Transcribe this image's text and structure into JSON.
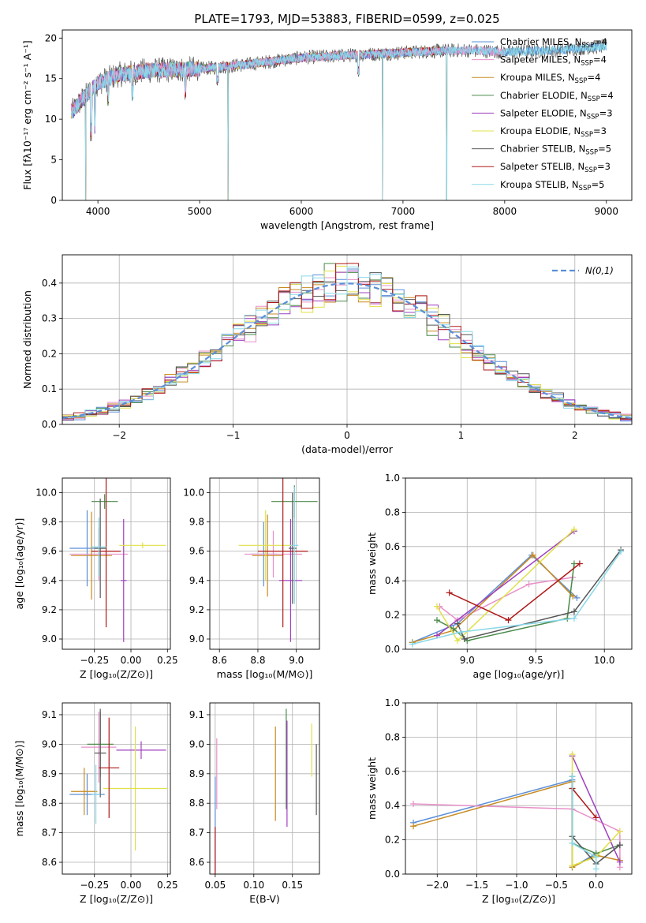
{
  "figure": {
    "title": "PLATE=1793, MJD=53883, FIBERID=0599, z=0.025"
  },
  "legend": [
    {
      "name": "Chabrier MILES, N",
      "sub": "SSP",
      "tail": "=4",
      "color": "#5b8fd8"
    },
    {
      "name": "Salpeter MILES, N",
      "sub": "SSP",
      "tail": "=4",
      "color": "#e890c8"
    },
    {
      "name": "Kroupa MILES, N",
      "sub": "SSP",
      "tail": "=4",
      "color": "#c88a20"
    },
    {
      "name": "Chabrier ELODIE, N",
      "sub": "SSP",
      "tail": "=4",
      "color": "#4a8a4a"
    },
    {
      "name": "Salpeter ELODIE, N",
      "sub": "SSP",
      "tail": "=3",
      "color": "#a040c0"
    },
    {
      "name": "Kroupa ELODIE, N",
      "sub": "SSP",
      "tail": "=3",
      "color": "#e0e048"
    },
    {
      "name": "Chabrier STELIB, N",
      "sub": "SSP",
      "tail": "=5",
      "color": "#555555"
    },
    {
      "name": "Salpeter STELIB, N",
      "sub": "SSP",
      "tail": "=3",
      "color": "#b01818"
    },
    {
      "name": "Kroupa STELIB, N",
      "sub": "SSP",
      "tail": "=5",
      "color": "#88d8e8"
    }
  ],
  "chart_data": [
    {
      "id": "spectrum",
      "type": "line",
      "title": "PLATE=1793, MJD=53883, FIBERID=0599, z=0.025",
      "xlabel": "wavelength [Angstrom, rest frame]",
      "ylabel": "Flux [fλ10⁻¹⁷ erg cm⁻² s⁻¹ A⁻¹]",
      "xlim": [
        3650,
        9250
      ],
      "ylim": [
        0,
        21
      ],
      "xticks": [
        4000,
        5000,
        6000,
        7000,
        8000,
        9000
      ],
      "yticks": [
        0,
        5,
        10,
        15,
        20
      ],
      "grid": false,
      "continuum": [
        [
          3750,
          11
        ],
        [
          3850,
          12.5
        ],
        [
          4000,
          14.5
        ],
        [
          4200,
          15.5
        ],
        [
          4500,
          16
        ],
        [
          5000,
          16.2
        ],
        [
          5500,
          16.8
        ],
        [
          6000,
          17.6
        ],
        [
          6500,
          17.9
        ],
        [
          7000,
          18.2
        ],
        [
          7300,
          18.4
        ],
        [
          7600,
          18.5
        ],
        [
          8000,
          18.3
        ],
        [
          8500,
          18.5
        ],
        [
          9000,
          19.0
        ]
      ],
      "series_ranges": [
        [
          3740,
          9000
        ],
        [
          3740,
          8000
        ],
        [
          3740,
          7430
        ],
        [
          3740,
          7430
        ],
        [
          3740,
          7430
        ],
        [
          3740,
          7430
        ],
        [
          3740,
          9000
        ],
        [
          3740,
          7430
        ],
        [
          3740,
          9000
        ]
      ],
      "dropouts": [
        {
          "x": 5280,
          "to": 0
        },
        {
          "x": 6800,
          "to": 0
        },
        {
          "x": 7430,
          "to": 0
        },
        {
          "x": 3880,
          "to": 0
        }
      ]
    },
    {
      "id": "residuals",
      "type": "histogram",
      "xlabel": "(data-model)/error",
      "ylabel": "Normed distribution",
      "xlim": [
        -2.5,
        2.5
      ],
      "ylim": [
        0,
        0.48
      ],
      "xticks": [
        -2,
        -1,
        0,
        1,
        2
      ],
      "yticks": [
        0.0,
        0.1,
        0.2,
        0.3,
        0.4
      ],
      "grid": true,
      "legend": "@N(0,1)",
      "reference": {
        "name": "N(0,1)",
        "mean": 0,
        "sigma": 1,
        "color": "#5b8fd8"
      },
      "bin_width": 0.1,
      "bins_start": -2.5
    },
    {
      "id": "age-vs-Z",
      "type": "errorbar",
      "xlabel": "Z [log₁₀(Z/Z⊙)]",
      "ylabel": "age  [log₁₀(age/yr)]",
      "xlim": [
        -0.47,
        0.27
      ],
      "ylim": [
        8.93,
        10.1
      ],
      "xticks": [
        -0.25,
        0.0,
        0.25
      ],
      "xticklabels": [
        "−0.25",
        "0.00",
        "0.25"
      ],
      "yticks": [
        9.0,
        9.2,
        9.4,
        9.6,
        9.8,
        10.0
      ],
      "grid": true,
      "points": [
        {
          "x": -0.3,
          "y": 9.62,
          "xerr": 0.12,
          "yerr": 0.26
        },
        {
          "x": -0.22,
          "y": 9.58,
          "xerr": 0.2,
          "yerr": 0.18
        },
        {
          "x": -0.27,
          "y": 9.57,
          "xerr": 0.14,
          "yerr": 0.3
        },
        {
          "x": -0.18,
          "y": 9.94,
          "xerr": 0.09,
          "yerr": 0.05
        },
        {
          "x": -0.05,
          "y": 9.4,
          "xerr": 0.02,
          "yerr": 0.42
        },
        {
          "x": 0.08,
          "y": 9.64,
          "xerr": 0.16,
          "yerr": 0.02
        },
        {
          "x": -0.21,
          "y": 9.62,
          "xerr": 0.04,
          "yerr": 0.34
        },
        {
          "x": -0.17,
          "y": 9.6,
          "xerr": 0.1,
          "yerr": 0.52
        },
        {
          "x": -0.22,
          "y": 9.63,
          "xerr": 0.05,
          "yerr": 0.2
        }
      ]
    },
    {
      "id": "age-vs-mass",
      "type": "errorbar",
      "xlabel": "mass [log₁₀(M/M⊙)]",
      "ylabel": "",
      "xlim": [
        8.55,
        9.12
      ],
      "ylim": [
        8.93,
        10.1
      ],
      "xticks": [
        8.6,
        8.8,
        9.0
      ],
      "yticks": [
        9.0,
        9.2,
        9.4,
        9.6,
        9.8,
        10.0
      ],
      "grid": true,
      "points": [
        {
          "x": 8.83,
          "y": 9.58,
          "xerr": 0.07,
          "yerr": 0.22
        },
        {
          "x": 8.88,
          "y": 9.58,
          "xerr": 0.15,
          "yerr": 0.16
        },
        {
          "x": 8.85,
          "y": 9.57,
          "xerr": 0.08,
          "yerr": 0.28
        },
        {
          "x": 8.99,
          "y": 9.94,
          "xerr": 0.12,
          "yerr": 0.11
        },
        {
          "x": 8.97,
          "y": 9.4,
          "xerr": 0.06,
          "yerr": 0.42
        },
        {
          "x": 8.84,
          "y": 9.64,
          "xerr": 0.14,
          "yerr": 0.24
        },
        {
          "x": 8.98,
          "y": 9.62,
          "xerr": 0.02,
          "yerr": 0.38
        },
        {
          "x": 8.93,
          "y": 9.6,
          "xerr": 0.13,
          "yerr": 0.52
        },
        {
          "x": 8.99,
          "y": 9.64,
          "xerr": 0.02,
          "yerr": 0.4
        }
      ]
    },
    {
      "id": "weights-vs-age",
      "type": "line",
      "xlabel": "age  [log₁₀(age/yr)]",
      "ylabel": "mass weight",
      "xlim": [
        8.55,
        10.2
      ],
      "ylim": [
        0,
        1.0
      ],
      "xticks": [
        9.0,
        9.5,
        10.0
      ],
      "yticks": [
        0.0,
        0.2,
        0.4,
        0.6,
        0.8,
        1.0
      ],
      "grid": true,
      "series": [
        {
          "x": [
            8.6,
            8.93,
            9.47,
            9.8
          ],
          "y": [
            0.04,
            0.15,
            0.55,
            0.3
          ]
        },
        {
          "x": [
            8.8,
            8.93,
            9.45,
            9.77
          ],
          "y": [
            0.25,
            0.17,
            0.38,
            0.42
          ]
        },
        {
          "x": [
            8.6,
            8.9,
            9.48,
            9.77
          ],
          "y": [
            0.04,
            0.11,
            0.55,
            0.31
          ]
        },
        {
          "x": [
            8.78,
            8.9,
            9.0,
            9.73,
            9.78
          ],
          "y": [
            0.17,
            0.12,
            0.05,
            0.18,
            0.5
          ]
        },
        {
          "x": [
            8.78,
            9.78
          ],
          "y": [
            0.08,
            0.69
          ]
        },
        {
          "x": [
            8.78,
            8.93,
            9.78
          ],
          "y": [
            0.25,
            0.05,
            0.7
          ]
        },
        {
          "x": [
            8.93,
            8.98,
            9.78,
            10.12
          ],
          "y": [
            0.15,
            0.06,
            0.22,
            0.58
          ]
        },
        {
          "x": [
            8.87,
            9.3,
            9.82
          ],
          "y": [
            0.33,
            0.17,
            0.5
          ]
        },
        {
          "x": [
            8.6,
            8.95,
            9.78,
            10.12
          ],
          "y": [
            0.03,
            0.1,
            0.18,
            0.57
          ]
        }
      ]
    },
    {
      "id": "mass-vs-Z",
      "type": "errorbar",
      "xlabel": "Z [log₁₀(Z/Z⊙)]",
      "ylabel": "mass [log₁₀(M/M⊙)]",
      "xlim": [
        -0.47,
        0.27
      ],
      "ylim": [
        8.56,
        9.14
      ],
      "xticks": [
        -0.25,
        0.0,
        0.25
      ],
      "xticklabels": [
        "−0.25",
        "0.00",
        "0.25"
      ],
      "yticks": [
        8.6,
        8.7,
        8.8,
        8.9,
        9.0,
        9.1
      ],
      "grid": true,
      "points": [
        {
          "x": -0.3,
          "y": 8.83,
          "xerr": 0.12,
          "yerr": 0.07
        },
        {
          "x": -0.22,
          "y": 8.99,
          "xerr": 0.12,
          "yerr": 0.12
        },
        {
          "x": -0.32,
          "y": 8.84,
          "xerr": 0.09,
          "yerr": 0.08
        },
        {
          "x": -0.21,
          "y": 9.0,
          "xerr": 0.09,
          "yerr": 0.11
        },
        {
          "x": 0.07,
          "y": 8.98,
          "xerr": 0.17,
          "yerr": 0.03
        },
        {
          "x": 0.03,
          "y": 8.85,
          "xerr": 0.22,
          "yerr": 0.21
        },
        {
          "x": -0.21,
          "y": 8.97,
          "xerr": 0.04,
          "yerr": 0.15
        },
        {
          "x": -0.15,
          "y": 8.92,
          "xerr": 0.07,
          "yerr": 0.17
        },
        {
          "x": -0.24,
          "y": 8.83,
          "xerr": 0.03,
          "yerr": 0.1
        }
      ]
    },
    {
      "id": "mass-vs-EBV",
      "type": "errorbar",
      "xlabel": "E(B-V)",
      "ylabel": "",
      "xlim": [
        0.043,
        0.185
      ],
      "ylim": [
        8.56,
        9.14
      ],
      "xticks": [
        0.05,
        0.1,
        0.15
      ],
      "xticklabels": [
        "0.05",
        "0.10",
        "0.15"
      ],
      "yticks": [
        8.6,
        8.7,
        8.8,
        8.9,
        9.0,
        9.1
      ],
      "grid": true,
      "points": [
        {
          "x": 0.05,
          "y": 8.73,
          "xerr": 0,
          "yerr": 0.16
        },
        {
          "x": 0.052,
          "y": 8.9,
          "xerr": 0,
          "yerr": 0.12
        },
        {
          "x": 0.128,
          "y": 8.9,
          "xerr": 0,
          "yerr": 0.16
        },
        {
          "x": 0.142,
          "y": 8.95,
          "xerr": 0,
          "yerr": 0.17
        },
        {
          "x": 0.143,
          "y": 8.9,
          "xerr": 0,
          "yerr": 0.18
        },
        {
          "x": 0.175,
          "y": 8.98,
          "xerr": 0,
          "yerr": 0.09
        },
        {
          "x": 0.181,
          "y": 8.88,
          "xerr": 0,
          "yerr": 0.12
        },
        {
          "x": 0.05,
          "y": 8.64,
          "xerr": 0,
          "yerr": 0.08
        }
      ]
    },
    {
      "id": "weights-vs-Z",
      "type": "line",
      "xlabel": "Z [log₁₀(Z/Z⊙)]",
      "ylabel": "mass weight",
      "xlim": [
        -2.4,
        0.45
      ],
      "ylim": [
        0,
        1.0
      ],
      "xticks": [
        -2.0,
        -1.5,
        -1.0,
        -0.5,
        0.0
      ],
      "xticklabels": [
        "−2.0",
        "−1.5",
        "−1.0",
        "−0.5",
        "0.0"
      ],
      "yticks": [
        0.0,
        0.2,
        0.4,
        0.6,
        0.8,
        1.0
      ],
      "grid": true,
      "series": [
        {
          "x": [
            -2.3,
            -0.3,
            -0.3,
            0.0
          ],
          "y": [
            0.3,
            0.55,
            0.04,
            0.12
          ]
        },
        {
          "x": [
            -2.3,
            -0.3,
            0.3,
            0.3
          ],
          "y": [
            0.41,
            0.38,
            0.25,
            0.04
          ]
        },
        {
          "x": [
            -2.3,
            -0.3,
            -0.3,
            0.0,
            0.3
          ],
          "y": [
            0.28,
            0.54,
            0.04,
            0.11,
            0.08
          ]
        },
        {
          "x": [
            -0.3,
            -0.3,
            0.0,
            0.3
          ],
          "y": [
            0.5,
            0.18,
            0.12,
            0.17
          ]
        },
        {
          "x": [
            -0.3,
            0.3
          ],
          "y": [
            0.69,
            0.07
          ]
        },
        {
          "x": [
            -0.3,
            -0.3,
            0.0,
            0.3
          ],
          "y": [
            0.7,
            0.05,
            0.1,
            0.25
          ]
        },
        {
          "x": [
            -0.3,
            -0.3,
            0.0,
            0.3
          ],
          "y": [
            0.57,
            0.22,
            0.06,
            0.17
          ]
        },
        {
          "x": [
            -0.3,
            0.0
          ],
          "y": [
            0.5,
            0.33
          ]
        },
        {
          "x": [
            -0.3,
            -0.3,
            0.0,
            0.0
          ],
          "y": [
            0.57,
            0.18,
            0.1,
            0.03
          ]
        }
      ]
    }
  ]
}
